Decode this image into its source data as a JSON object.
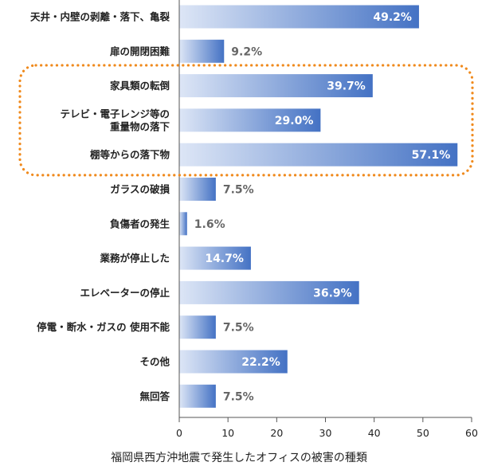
{
  "chart_data": {
    "type": "bar",
    "orientation": "horizontal",
    "title": "福岡県西方沖地震で発生したオフィスの被害の種類",
    "xlabel": "",
    "ylabel": "",
    "xlim": [
      0,
      60
    ],
    "xticks": [
      "0",
      "10",
      "20",
      "30",
      "40",
      "50",
      "60"
    ],
    "grid": false,
    "categories": [
      [
        "天井・内壁の剥離・落下、亀裂"
      ],
      [
        "扉の開閉困難"
      ],
      [
        "家具類の転倒"
      ],
      [
        "テレビ・電子レンジ等の",
        "重量物の落下"
      ],
      [
        "棚等からの落下物"
      ],
      [
        "ガラスの破損"
      ],
      [
        "負傷者の発生"
      ],
      [
        "業務が停止した"
      ],
      [
        "エレベーターの停止"
      ],
      [
        "停電・断水・ガスの 使用不能"
      ],
      [
        "その他"
      ],
      [
        "無回答"
      ]
    ],
    "values": [
      49.2,
      9.2,
      39.7,
      29.0,
      57.1,
      7.5,
      1.6,
      14.7,
      36.9,
      7.5,
      22.2,
      7.5
    ],
    "data_labels": [
      "49.2%",
      "9.2%",
      "39.7%",
      "29.0%",
      "57.1%",
      "7.5%",
      "1.6%",
      "14.7%",
      "36.9%",
      "7.5%",
      "22.2%",
      "7.5%"
    ],
    "highlight": {
      "indices": [
        2,
        3,
        4
      ],
      "style": "dotted-rounded-box"
    }
  },
  "colors": {
    "bar_dark": "#4472c4",
    "bar_light": "#dde6f6",
    "highlight": "#f08a1d",
    "text": "#222222",
    "value_outside": "#666666"
  }
}
